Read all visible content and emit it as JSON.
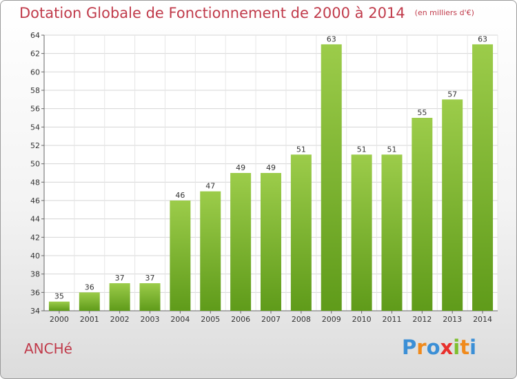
{
  "header": {
    "title": "Dotation Globale de Fonctionnement de 2000 à 2014",
    "subtitle": "(en milliers d'€)"
  },
  "commune": "ANCHé",
  "logo": {
    "letters": [
      "P",
      "r",
      "o",
      "x",
      "i",
      "t",
      "i"
    ],
    "colors": [
      "#3b8fd6",
      "#f08a1c",
      "#3b8fd6",
      "#e8302c",
      "#7fbf2f",
      "#f08a1c",
      "#3b8fd6"
    ]
  },
  "chart_data": {
    "type": "bar",
    "title": "Dotation Globale de Fonctionnement de 2000 à 2014",
    "subtitle": "(en milliers d'€)",
    "categories": [
      "2000",
      "2001",
      "2002",
      "2003",
      "2004",
      "2005",
      "2006",
      "2007",
      "2008",
      "2009",
      "2010",
      "2011",
      "2012",
      "2013",
      "2014"
    ],
    "values": [
      35,
      36,
      37,
      37,
      46,
      47,
      49,
      49,
      51,
      63,
      51,
      51,
      55,
      57,
      63
    ],
    "ylim": [
      34,
      64
    ],
    "yticks": [
      34,
      36,
      38,
      40,
      42,
      44,
      46,
      48,
      50,
      52,
      54,
      56,
      58,
      60,
      62,
      64
    ],
    "grid": true,
    "bar_color_top": "#9ccc4a",
    "bar_color_bottom": "#5f9b1a",
    "label_color": "#333333"
  }
}
